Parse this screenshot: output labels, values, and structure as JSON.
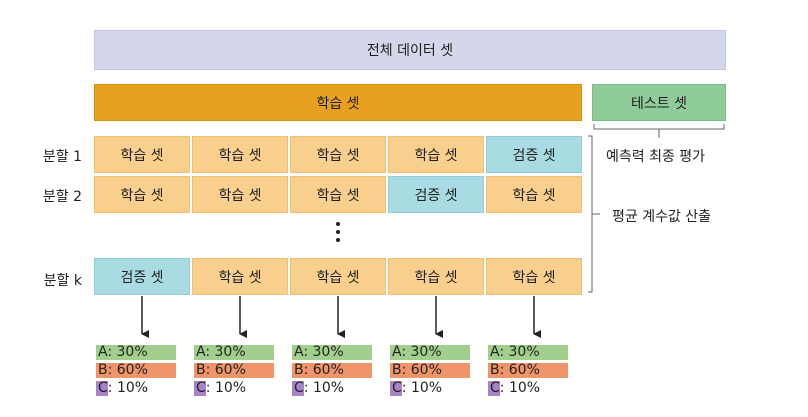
{
  "full_data_label": "전체 데이터 셋",
  "train_label": "학습 셋",
  "test_label": "테스트 셋",
  "cell_train": "학습 셋",
  "cell_val": "검증 셋",
  "rows": [
    {
      "label": "분할 1",
      "validation_index": 4
    },
    {
      "label": "분할 2",
      "validation_index": 3
    },
    {
      "label": "분할 k",
      "validation_index": 0
    }
  ],
  "ellipsis": "⋮",
  "final_eval_label": "예측력 최종 평가",
  "average_label": "평균 계수값 산출",
  "class_dist": [
    {
      "label": "A: 30%",
      "color": "#a3cf8e"
    },
    {
      "label": "B: 60%",
      "color": "#f0956a"
    },
    {
      "label": "C: 10%",
      "color": "#a783c8"
    }
  ],
  "class_dist_count": 5
}
